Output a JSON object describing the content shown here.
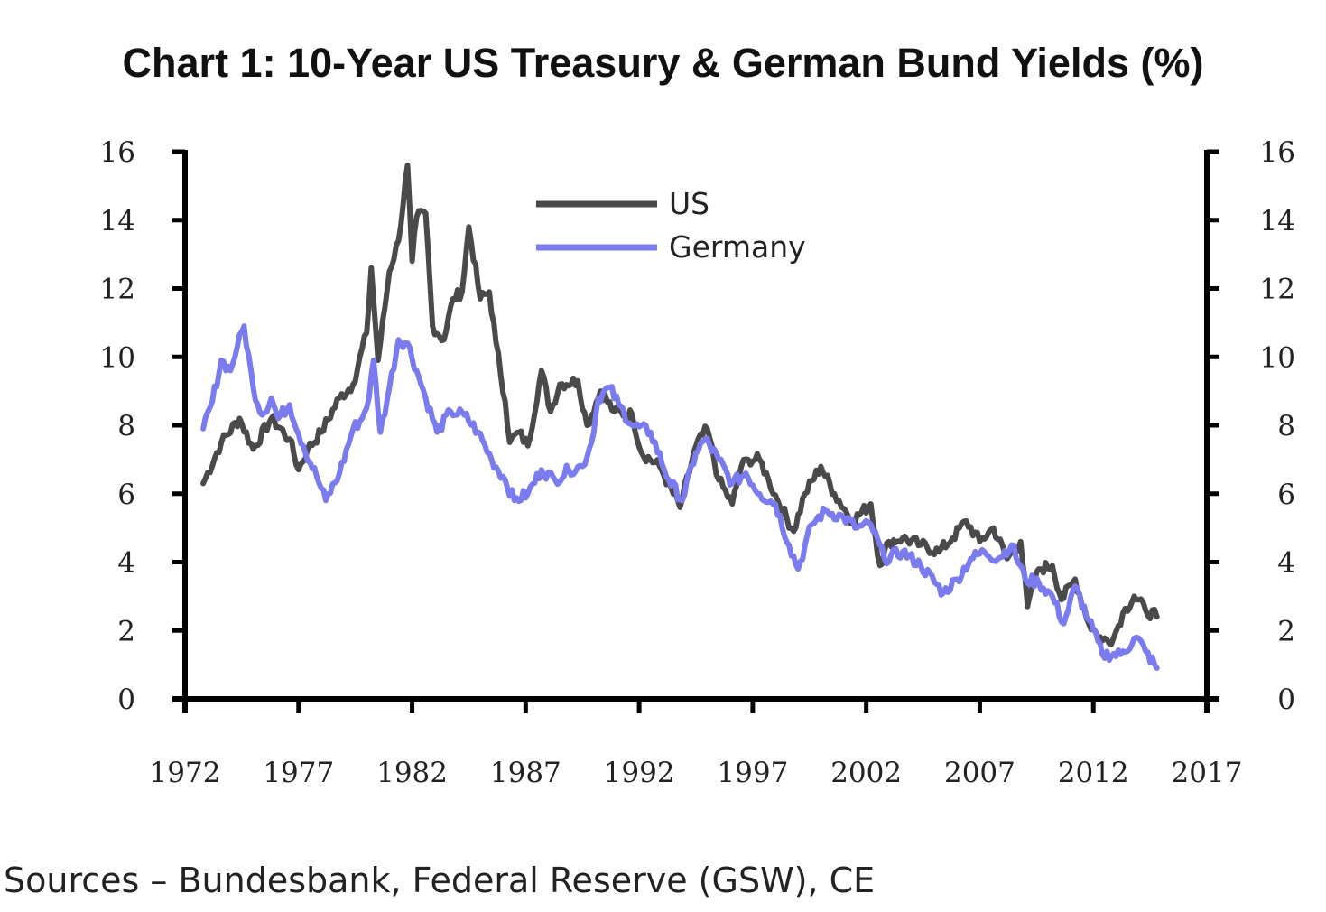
{
  "chart_data": {
    "type": "line",
    "title": "Chart 1: 10-Year US Treasury & German Bund Yields (%)",
    "xlabel": "",
    "ylabel": "",
    "ylabel_right": "",
    "xlim": [
      1972,
      2017
    ],
    "ylim": [
      0,
      16
    ],
    "x_ticks": [
      "1972",
      "1977",
      "1982",
      "1987",
      "1992",
      "1997",
      "2002",
      "2007",
      "2012",
      "2017"
    ],
    "y_ticks": [
      "0",
      "2",
      "4",
      "6",
      "8",
      "10",
      "12",
      "14",
      "16"
    ],
    "y_ticks_right": [
      "0",
      "2",
      "4",
      "6",
      "8",
      "10",
      "12",
      "14",
      "16"
    ],
    "grid": false,
    "legend_position": "top-center",
    "series": [
      {
        "name": "US",
        "color": "#4a4a4a",
        "points": [
          [
            1972.8,
            6.3
          ],
          [
            1973.6,
            7.5
          ],
          [
            1974.4,
            8.2
          ],
          [
            1975.0,
            7.3
          ],
          [
            1975.8,
            8.2
          ],
          [
            1976.6,
            7.6
          ],
          [
            1977.0,
            6.7
          ],
          [
            1977.4,
            7.3
          ],
          [
            1978.0,
            7.8
          ],
          [
            1978.8,
            8.8
          ],
          [
            1979.4,
            9.2
          ],
          [
            1980.0,
            10.7
          ],
          [
            1980.2,
            12.6
          ],
          [
            1980.5,
            9.9
          ],
          [
            1981.0,
            12.5
          ],
          [
            1981.4,
            13.4
          ],
          [
            1981.8,
            15.6
          ],
          [
            1982.0,
            12.8
          ],
          [
            1982.2,
            14.1
          ],
          [
            1982.6,
            14.2
          ],
          [
            1982.9,
            10.9
          ],
          [
            1983.4,
            10.5
          ],
          [
            1983.8,
            11.7
          ],
          [
            1984.2,
            11.9
          ],
          [
            1984.5,
            13.8
          ],
          [
            1985.0,
            11.7
          ],
          [
            1985.4,
            11.9
          ],
          [
            1985.7,
            10.4
          ],
          [
            1986.1,
            8.7
          ],
          [
            1986.3,
            7.5
          ],
          [
            1986.7,
            7.8
          ],
          [
            1987.1,
            7.4
          ],
          [
            1987.7,
            9.6
          ],
          [
            1988.1,
            8.4
          ],
          [
            1988.5,
            9.2
          ],
          [
            1989.3,
            9.3
          ],
          [
            1989.7,
            8.0
          ],
          [
            1990.3,
            9.0
          ],
          [
            1990.9,
            8.4
          ],
          [
            1991.7,
            8.3
          ],
          [
            1992.1,
            7.2
          ],
          [
            1992.9,
            6.8
          ],
          [
            1993.8,
            5.6
          ],
          [
            1994.5,
            7.4
          ],
          [
            1995.0,
            7.9
          ],
          [
            1995.5,
            6.4
          ],
          [
            1996.1,
            5.7
          ],
          [
            1996.5,
            6.8
          ],
          [
            1996.8,
            7.0
          ],
          [
            1997.3,
            7.0
          ],
          [
            1997.7,
            6.4
          ],
          [
            1998.1,
            5.8
          ],
          [
            1998.8,
            4.9
          ],
          [
            1999.3,
            6.0
          ],
          [
            2000.0,
            6.8
          ],
          [
            2000.6,
            6.0
          ],
          [
            2001.4,
            5.2
          ],
          [
            2002.2,
            5.7
          ],
          [
            2002.6,
            3.9
          ],
          [
            2003.0,
            4.6
          ],
          [
            2003.6,
            4.7
          ],
          [
            2004.4,
            4.5
          ],
          [
            2005.2,
            4.3
          ],
          [
            2005.8,
            4.7
          ],
          [
            2006.4,
            5.2
          ],
          [
            2007.0,
            4.6
          ],
          [
            2007.6,
            5.0
          ],
          [
            2008.2,
            4.1
          ],
          [
            2008.8,
            4.6
          ],
          [
            2009.1,
            2.7
          ],
          [
            2009.6,
            3.8
          ],
          [
            2010.2,
            3.9
          ],
          [
            2010.6,
            2.9
          ],
          [
            2011.2,
            3.5
          ],
          [
            2011.8,
            2.2
          ],
          [
            2012.4,
            1.7
          ],
          [
            2012.9,
            1.8
          ],
          [
            2013.3,
            2.5
          ],
          [
            2013.8,
            3.0
          ],
          [
            2014.3,
            2.6
          ],
          [
            2014.8,
            2.4
          ]
        ]
      },
      {
        "name": "Germany",
        "color": "#7b7bf0",
        "points": [
          [
            1972.8,
            7.9
          ],
          [
            1973.2,
            8.7
          ],
          [
            1973.6,
            9.9
          ],
          [
            1974.0,
            9.6
          ],
          [
            1974.3,
            10.3
          ],
          [
            1974.6,
            10.9
          ],
          [
            1975.0,
            9.1
          ],
          [
            1975.4,
            8.3
          ],
          [
            1975.8,
            8.8
          ],
          [
            1976.1,
            8.2
          ],
          [
            1976.6,
            8.6
          ],
          [
            1977.2,
            7.4
          ],
          [
            1977.8,
            6.5
          ],
          [
            1978.2,
            5.8
          ],
          [
            1978.8,
            6.6
          ],
          [
            1979.4,
            7.9
          ],
          [
            1979.8,
            8.2
          ],
          [
            1980.1,
            8.8
          ],
          [
            1980.3,
            9.9
          ],
          [
            1980.6,
            7.8
          ],
          [
            1981.0,
            9.1
          ],
          [
            1981.4,
            10.5
          ],
          [
            1981.8,
            10.4
          ],
          [
            1982.2,
            9.6
          ],
          [
            1982.6,
            8.8
          ],
          [
            1983.1,
            7.8
          ],
          [
            1983.7,
            8.4
          ],
          [
            1984.3,
            8.3
          ],
          [
            1984.9,
            7.8
          ],
          [
            1985.5,
            7.0
          ],
          [
            1986.1,
            6.4
          ],
          [
            1986.5,
            5.8
          ],
          [
            1987.1,
            6.0
          ],
          [
            1987.7,
            6.7
          ],
          [
            1988.3,
            6.4
          ],
          [
            1988.9,
            6.7
          ],
          [
            1989.5,
            6.8
          ],
          [
            1989.9,
            7.5
          ],
          [
            1990.2,
            8.8
          ],
          [
            1990.7,
            9.1
          ],
          [
            1991.1,
            8.6
          ],
          [
            1991.7,
            8.0
          ],
          [
            1992.5,
            7.8
          ],
          [
            1993.3,
            6.4
          ],
          [
            1993.9,
            5.8
          ],
          [
            1994.5,
            7.2
          ],
          [
            1994.9,
            7.6
          ],
          [
            1995.5,
            7.0
          ],
          [
            1996.1,
            6.3
          ],
          [
            1996.7,
            6.6
          ],
          [
            1997.3,
            6.0
          ],
          [
            1998.0,
            5.7
          ],
          [
            1998.6,
            4.5
          ],
          [
            1999.0,
            3.8
          ],
          [
            1999.6,
            5.1
          ],
          [
            2000.2,
            5.5
          ],
          [
            2001.0,
            5.3
          ],
          [
            2001.6,
            5.0
          ],
          [
            2002.2,
            5.1
          ],
          [
            2002.8,
            4.1
          ],
          [
            2003.6,
            4.3
          ],
          [
            2004.4,
            3.9
          ],
          [
            2005.4,
            3.1
          ],
          [
            2006.0,
            3.5
          ],
          [
            2006.6,
            4.1
          ],
          [
            2007.2,
            4.3
          ],
          [
            2007.8,
            4.1
          ],
          [
            2008.4,
            4.5
          ],
          [
            2009.0,
            3.5
          ],
          [
            2009.6,
            3.4
          ],
          [
            2010.2,
            3.0
          ],
          [
            2010.7,
            2.2
          ],
          [
            2011.2,
            3.3
          ],
          [
            2011.8,
            2.3
          ],
          [
            2012.4,
            1.3
          ],
          [
            2013.2,
            1.3
          ],
          [
            2013.9,
            1.8
          ],
          [
            2014.3,
            1.4
          ],
          [
            2014.8,
            0.9
          ]
        ]
      }
    ]
  },
  "legend": {
    "us_label": "US",
    "germany_label": "Germany"
  },
  "footer": {
    "source": "Sources – Bundesbank, Federal Reserve (GSW), CE"
  }
}
